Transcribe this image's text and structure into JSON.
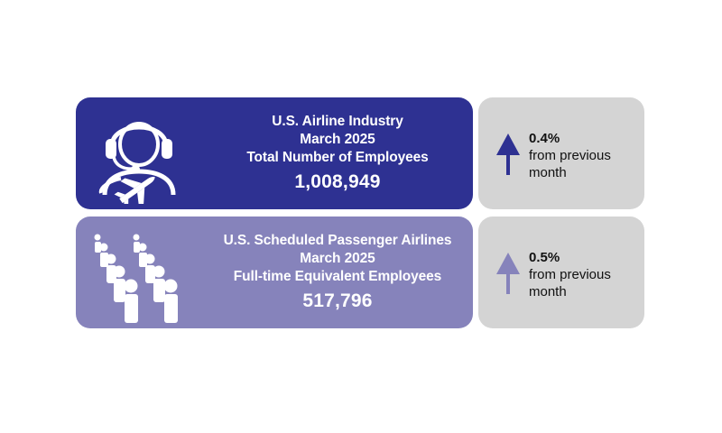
{
  "industry": {
    "line1": "U.S. Airline Industry",
    "line2": "March 2025",
    "line3": "Total Number of Employees",
    "value": "1,008,949",
    "change_pct": "0.4%",
    "change_text": "from previous month",
    "icon": "headset-agent-airplane-icon",
    "color": "#2e3192",
    "arrow_color": "#2e3192"
  },
  "passenger": {
    "line1": "U.S. Scheduled Passenger Airlines",
    "line2": "March 2025",
    "line3": "Full-time Equivalent Employees",
    "value": "517,796",
    "change_pct": "0.5%",
    "change_text": "from previous month",
    "icon": "people-crowd-icon",
    "color": "#8683bb",
    "arrow_color": "#8683bb"
  },
  "change_panel_color": "#d4d4d4"
}
